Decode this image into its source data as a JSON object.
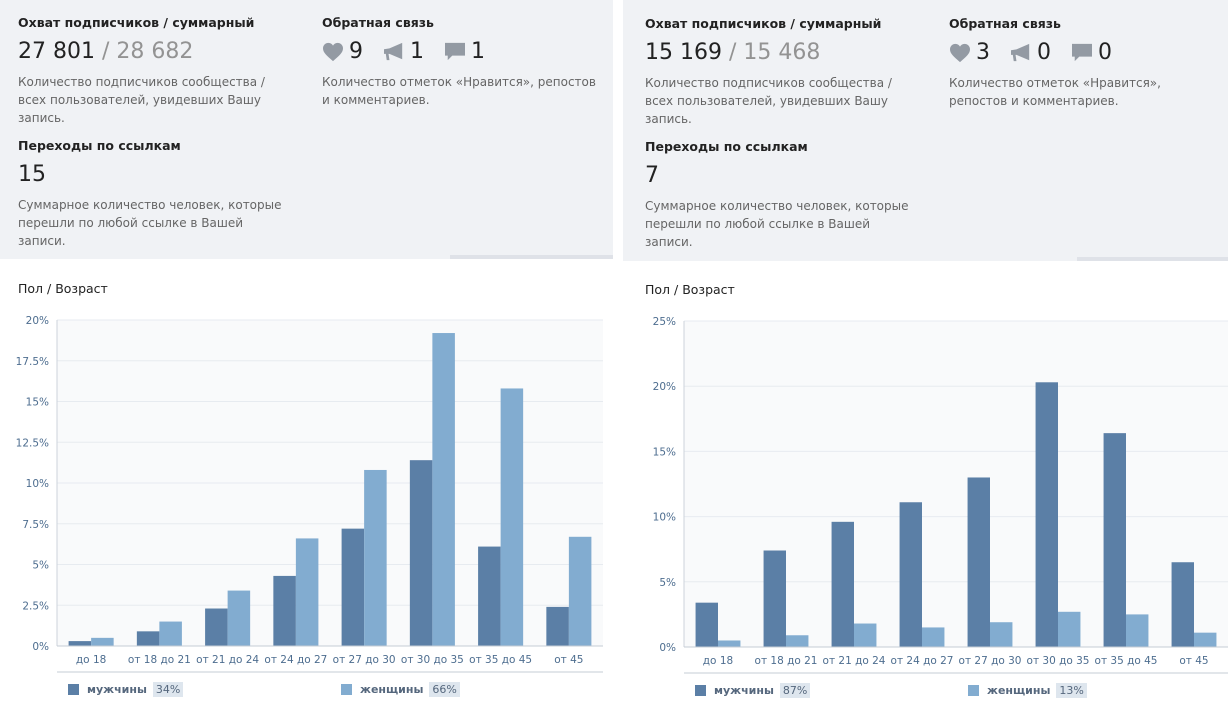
{
  "colors": {
    "male": "#5b7fa6",
    "female": "#82acd0",
    "stats_bg": "#f0f2f5",
    "text_dark": "#222222",
    "text_muted": "#656565",
    "number_muted": "#939393",
    "grid": "#e7ebf0",
    "plot_bg": "#f9fafb",
    "axis_label": "#4d6d8f"
  },
  "panels": [
    {
      "reach": {
        "title": "Охват подписчиков / суммарный",
        "subscribers": "27 801",
        "separator": " / ",
        "total": "28 682",
        "description": "Количество подписчиков сообщества / всех пользователей, увидевших Вашу запись."
      },
      "feedback": {
        "title": "Обратная связь",
        "likes": "9",
        "reposts": "1",
        "comments": "1",
        "like_icon": "heart-icon",
        "repost_icon": "megaphone-icon",
        "comment_icon": "speech-bubble-icon",
        "description": "Количество отметок «Нравится», репостов и комментариев."
      },
      "links": {
        "title": "Переходы по ссылкам",
        "value": "15",
        "description": "Суммарное количество человек, которые перешли по любой ссылке в Вашей записи."
      },
      "chart_title": "Пол / Возраст",
      "legend": [
        {
          "label": "мужчины",
          "percent": "34%"
        },
        {
          "label": "женщины",
          "percent": "66%"
        }
      ]
    },
    {
      "reach": {
        "title": "Охват подписчиков / суммарный",
        "subscribers": "15 169",
        "separator": " / ",
        "total": "15 468",
        "description": "Количество подписчиков сообщества / всех пользователей, увидевших Вашу запись."
      },
      "feedback": {
        "title": "Обратная связь",
        "likes": "3",
        "reposts": "0",
        "comments": "0",
        "like_icon": "heart-icon",
        "repost_icon": "megaphone-icon",
        "comment_icon": "speech-bubble-icon",
        "description": "Количество отметок «Нравится», репостов и комментариев."
      },
      "links": {
        "title": "Переходы по ссылкам",
        "value": "7",
        "description": "Суммарное количество человек, которые перешли по любой ссылке в Вашей записи."
      },
      "chart_title": "Пол / Возраст",
      "legend": [
        {
          "label": "мужчины",
          "percent": "87%"
        },
        {
          "label": "женщины",
          "percent": "13%"
        }
      ]
    }
  ],
  "chart_data": [
    {
      "type": "bar",
      "title": "Пол / Возраст",
      "categories": [
        "до 18",
        "от 18 до 21",
        "от 21 до 24",
        "от 24 до 27",
        "от 27 до 30",
        "от 30 до 35",
        "от 35 до 45",
        "от 45"
      ],
      "series": [
        {
          "name": "мужчины",
          "values": [
            0.3,
            0.9,
            2.3,
            4.3,
            7.2,
            11.4,
            6.1,
            2.4
          ]
        },
        {
          "name": "женщины",
          "values": [
            0.5,
            1.5,
            3.4,
            6.6,
            10.8,
            19.2,
            15.8,
            6.7
          ]
        }
      ],
      "yticks": [
        "0%",
        "2.5%",
        "5%",
        "7.5%",
        "10%",
        "12.5%",
        "15%",
        "17.5%",
        "20%"
      ],
      "ylim": [
        0,
        20
      ],
      "grid": true,
      "legend_position": "bottom"
    },
    {
      "type": "bar",
      "title": "Пол / Возраст",
      "categories": [
        "до 18",
        "от 18 до 21",
        "от 21 до 24",
        "от 24 до 27",
        "от 27 до 30",
        "от 30 до 35",
        "от 35 до 45",
        "от 45"
      ],
      "series": [
        {
          "name": "мужчины",
          "values": [
            3.4,
            7.4,
            9.6,
            11.1,
            13.0,
            20.3,
            16.4,
            6.5
          ]
        },
        {
          "name": "женщины",
          "values": [
            0.5,
            0.9,
            1.8,
            1.5,
            1.9,
            2.7,
            2.5,
            1.1
          ]
        }
      ],
      "yticks": [
        "0%",
        "5%",
        "10%",
        "15%",
        "20%",
        "25%"
      ],
      "ylim": [
        0,
        25
      ],
      "grid": true,
      "legend_position": "bottom"
    }
  ]
}
